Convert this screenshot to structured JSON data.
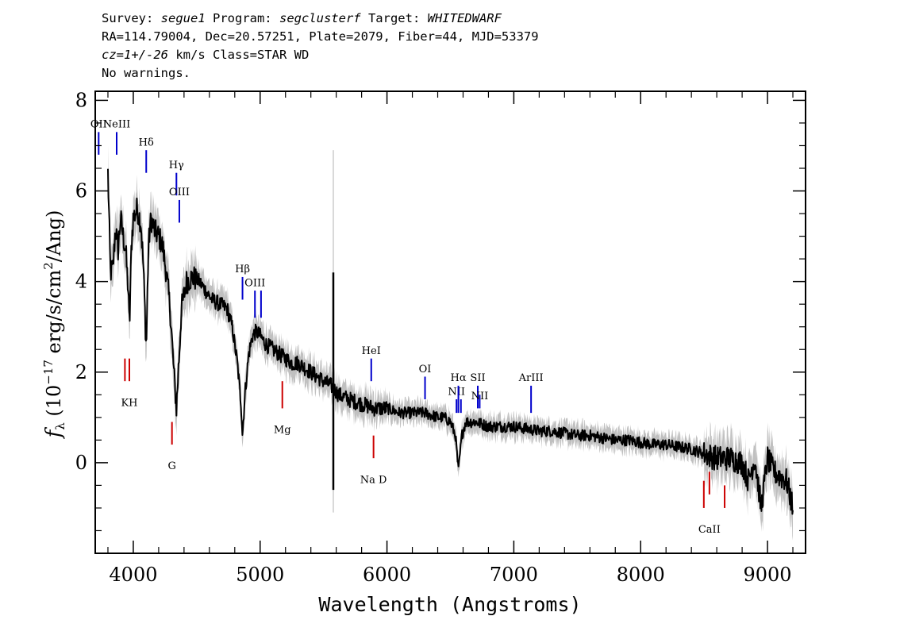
{
  "header": {
    "survey_label": "Survey: ",
    "survey": "segue1",
    "program_label": " Program: ",
    "program": "segclusterf",
    "target_label": " Target: ",
    "target": "WHITEDWARF",
    "line2": "RA=114.79004, Dec=20.57251, Plate=2079, Fiber=44, MJD=53379",
    "cz": "cz=1+/-26",
    "cz_rest": " km/s Class=STAR WD",
    "line4": "No warnings."
  },
  "chart_data": {
    "type": "line",
    "xlabel": "Wavelength (Angstroms)",
    "ylabel_parts": [
      "f",
      "λ",
      " (10",
      "−17",
      " erg/s/cm",
      "2",
      "/Ang)"
    ],
    "xlim": [
      3700,
      9300
    ],
    "ylim": [
      -2,
      8.2
    ],
    "x_ticks": [
      4000,
      5000,
      6000,
      7000,
      8000,
      9000
    ],
    "x_tick_labels": [
      "4000",
      "5000",
      "6000",
      "7000",
      "8000",
      "9000"
    ],
    "y_ticks": [
      0,
      2,
      4,
      6,
      8
    ],
    "y_tick_labels": [
      "0",
      "2",
      "4",
      "6",
      "8"
    ],
    "colors": {
      "flux": "#000000",
      "error": "#c0c0c0",
      "emission": "#0000cc",
      "absorption": "#cc0000"
    },
    "series": [
      {
        "x": [
          3800,
          3820,
          3840,
          3860,
          3880,
          3900,
          3920,
          3940,
          3960,
          3970,
          3985,
          4000,
          4030,
          4060,
          4080,
          4102,
          4120,
          4140,
          4170,
          4200,
          4230,
          4260,
          4290,
          4320,
          4340,
          4360,
          4380,
          4420,
          4470,
          4520,
          4570,
          4620,
          4680,
          4740,
          4780,
          4820,
          4850,
          4861,
          4880,
          4910,
          4940,
          4970,
          5000,
          5050,
          5100,
          5150,
          5200,
          5250,
          5300,
          5350,
          5400,
          5450,
          5500,
          5560,
          5620,
          5700,
          5800,
          5900,
          6000,
          6100,
          6200,
          6300,
          6400,
          6450,
          6500,
          6540,
          6563,
          6590,
          6620,
          6700,
          6800,
          6900,
          7000,
          7100,
          7200,
          7300,
          7400,
          7500,
          7600,
          7700,
          7800,
          7900,
          8000,
          8100,
          8200,
          8300,
          8400,
          8500,
          8600,
          8700,
          8800,
          8850,
          8900,
          8950,
          9000,
          9050,
          9100,
          9150,
          9200
        ],
        "y": [
          6.4,
          4.2,
          4.3,
          5.2,
          4.7,
          5.4,
          5.0,
          4.7,
          3.8,
          3.0,
          4.8,
          5.4,
          5.6,
          5.3,
          4.3,
          2.5,
          4.8,
          5.4,
          5.1,
          5.0,
          4.8,
          4.2,
          3.4,
          2.0,
          1.2,
          2.3,
          3.4,
          4.0,
          4.1,
          4.0,
          3.8,
          3.6,
          3.5,
          3.4,
          3.0,
          2.2,
          1.3,
          0.6,
          1.5,
          2.4,
          2.8,
          2.9,
          2.8,
          2.6,
          2.5,
          2.4,
          2.3,
          2.2,
          2.2,
          2.1,
          2.0,
          1.9,
          1.8,
          1.7,
          1.5,
          1.4,
          1.3,
          1.2,
          1.2,
          1.1,
          1.1,
          1.1,
          1.0,
          1.0,
          0.9,
          0.6,
          -0.2,
          0.6,
          0.9,
          0.9,
          0.8,
          0.8,
          0.8,
          0.75,
          0.7,
          0.7,
          0.65,
          0.6,
          0.6,
          0.55,
          0.5,
          0.5,
          0.45,
          0.4,
          0.4,
          0.35,
          0.3,
          0.2,
          0.1,
          0.1,
          0.0,
          -0.4,
          0.1,
          -1.0,
          0.1,
          -0.2,
          -0.3,
          -0.4,
          -1.0
        ]
      }
    ],
    "spike": {
      "x": 5577,
      "ymin": -0.6,
      "ymax": 4.2
    },
    "line_labels": [
      {
        "name": "OII",
        "x": 3727,
        "y1": 6.8,
        "y2": 7.3,
        "label_y": 7.4,
        "kind": "emission"
      },
      {
        "name": "NeIII",
        "x": 3869,
        "y1": 6.8,
        "y2": 7.3,
        "label_y": 7.4,
        "kind": "emission"
      },
      {
        "name": "Hδ",
        "x": 4102,
        "y1": 6.4,
        "y2": 6.9,
        "label_y": 7.0,
        "kind": "emission"
      },
      {
        "name": "Hγ",
        "x": 4340,
        "y1": 5.9,
        "y2": 6.4,
        "label_y": 6.5,
        "kind": "emission"
      },
      {
        "name": "OIII",
        "x": 4363,
        "y1": 5.3,
        "y2": 5.8,
        "label_y": 5.9,
        "kind": "emission"
      },
      {
        "name": "Hβ",
        "x": 4861,
        "y1": 3.6,
        "y2": 4.1,
        "label_y": 4.2,
        "kind": "emission"
      },
      {
        "name": "OIII",
        "x": 4959,
        "y1": 3.2,
        "y2": 3.8,
        "label_y": 3.9,
        "kind": "emission"
      },
      {
        "name": "",
        "x": 5007,
        "y1": 3.2,
        "y2": 3.8,
        "label_y": 3.9,
        "kind": "emission"
      },
      {
        "name": "HeI",
        "x": 5876,
        "y1": 1.8,
        "y2": 2.3,
        "label_y": 2.4,
        "kind": "emission"
      },
      {
        "name": "OI",
        "x": 6300,
        "y1": 1.4,
        "y2": 1.9,
        "label_y": 2.0,
        "kind": "emission"
      },
      {
        "name": "NII",
        "x": 6548,
        "y1": 1.1,
        "y2": 1.4,
        "label_y": 1.5,
        "kind": "emission"
      },
      {
        "name": "Hα",
        "x": 6563,
        "y1": 1.1,
        "y2": 1.7,
        "label_y": 1.8,
        "kind": "emission"
      },
      {
        "name": "",
        "x": 6583,
        "y1": 1.1,
        "y2": 1.4,
        "label_y": 1.5,
        "kind": "emission"
      },
      {
        "name": "SII",
        "x": 6716,
        "y1": 1.2,
        "y2": 1.7,
        "label_y": 1.8,
        "kind": "emission"
      },
      {
        "name": "NII",
        "x": 6731,
        "y1": 1.2,
        "y2": 1.5,
        "label_y": 1.4,
        "kind": "emission"
      },
      {
        "name": "ArIII",
        "x": 7136,
        "y1": 1.1,
        "y2": 1.7,
        "label_y": 1.8,
        "kind": "emission"
      },
      {
        "name": "",
        "x": 3934,
        "y1": 1.8,
        "y2": 2.3,
        "label_y": 1.5,
        "kind": "absorption"
      },
      {
        "name": "KH",
        "x": 3969,
        "y1": 1.8,
        "y2": 2.3,
        "label_y": 1.5,
        "kind": "absorption"
      },
      {
        "name": "G",
        "x": 4305,
        "y1": 0.4,
        "y2": 0.9,
        "label_y": 0.1,
        "kind": "absorption"
      },
      {
        "name": "Mg",
        "x": 5175,
        "y1": 1.2,
        "y2": 1.8,
        "label_y": 0.9,
        "kind": "absorption"
      },
      {
        "name": "Na D",
        "x": 5894,
        "y1": 0.1,
        "y2": 0.6,
        "label_y": -0.2,
        "kind": "absorption"
      },
      {
        "name": "",
        "x": 8498,
        "y1": -1.0,
        "y2": -0.4,
        "label_y": -1.3,
        "kind": "absorption"
      },
      {
        "name": "CaII",
        "x": 8542,
        "y1": -0.7,
        "y2": -0.2,
        "label_y": -1.3,
        "kind": "absorption"
      },
      {
        "name": "",
        "x": 8662,
        "y1": -1.0,
        "y2": -0.5,
        "label_y": -1.3,
        "kind": "absorption"
      }
    ]
  }
}
